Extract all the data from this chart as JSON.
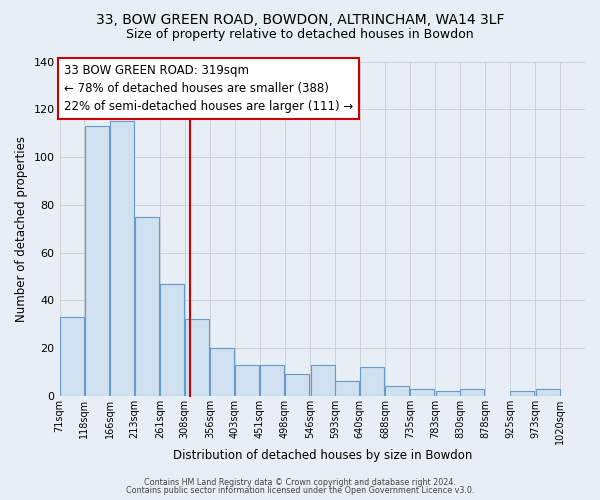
{
  "title_line1": "33, BOW GREEN ROAD, BOWDON, ALTRINCHAM, WA14 3LF",
  "title_line2": "Size of property relative to detached houses in Bowdon",
  "xlabel": "Distribution of detached houses by size in Bowdon",
  "ylabel": "Number of detached properties",
  "bar_left_edges": [
    71,
    118,
    166,
    213,
    261,
    308,
    356,
    403,
    451,
    498,
    546,
    593,
    640,
    688,
    735,
    783,
    830,
    878,
    925,
    973
  ],
  "bar_heights": [
    33,
    113,
    115,
    75,
    47,
    32,
    20,
    13,
    13,
    9,
    13,
    6,
    12,
    4,
    3,
    2,
    3,
    0,
    2,
    3
  ],
  "bin_width": 47,
  "tick_labels": [
    "71sqm",
    "118sqm",
    "166sqm",
    "213sqm",
    "261sqm",
    "308sqm",
    "356sqm",
    "403sqm",
    "451sqm",
    "498sqm",
    "546sqm",
    "593sqm",
    "640sqm",
    "688sqm",
    "735sqm",
    "783sqm",
    "830sqm",
    "878sqm",
    "925sqm",
    "973sqm",
    "1020sqm"
  ],
  "tick_positions": [
    71,
    118,
    166,
    213,
    261,
    308,
    356,
    403,
    451,
    498,
    546,
    593,
    640,
    688,
    735,
    783,
    830,
    878,
    925,
    973,
    1020
  ],
  "red_line_x": 319,
  "bar_facecolor": "#cfe0f0",
  "bar_edgecolor": "#6699cc",
  "red_line_color": "#cc0000",
  "grid_color": "#cccccc",
  "ylim": [
    0,
    140
  ],
  "annotation_text": "33 BOW GREEN ROAD: 319sqm\n← 78% of detached houses are smaller (388)\n22% of semi-detached houses are larger (111) →",
  "annotation_box_edgecolor": "#cc0000",
  "footer_line1": "Contains HM Land Registry data © Crown copyright and database right 2024.",
  "footer_line2": "Contains public sector information licensed under the Open Government Licence v3.0.",
  "bg_color": "#e8eef5",
  "plot_bg_color": "#e8eef5",
  "title1_fontsize": 10,
  "title2_fontsize": 9
}
